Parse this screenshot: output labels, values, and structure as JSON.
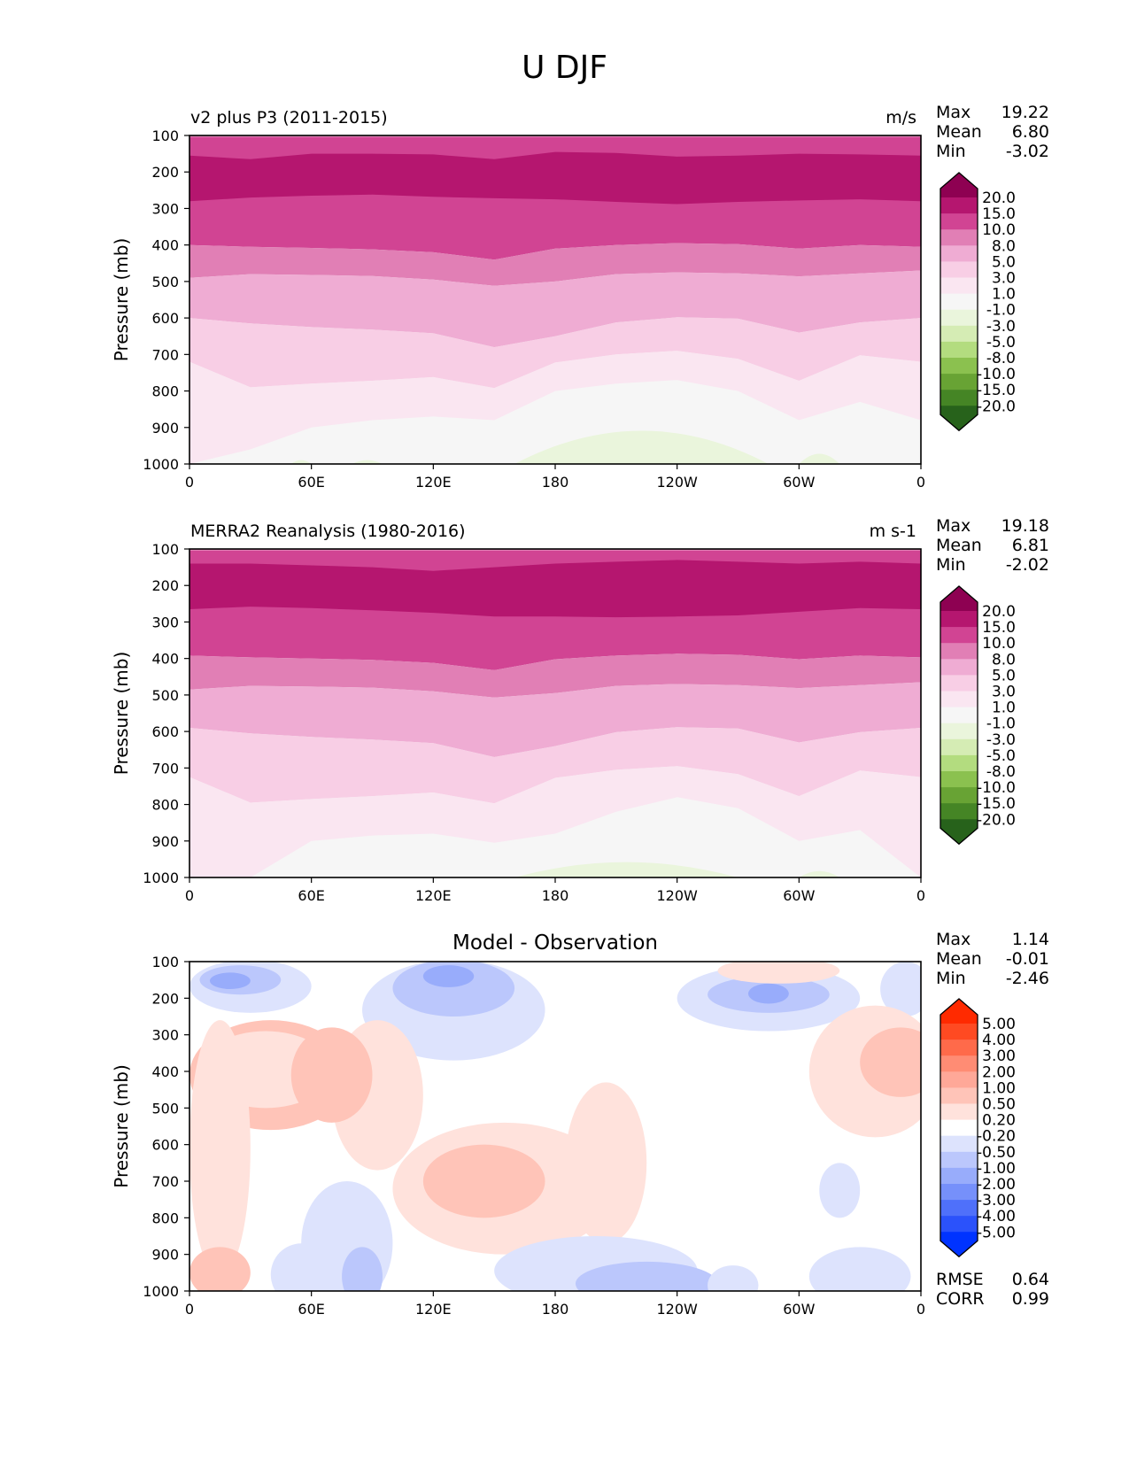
{
  "figure_title": "U DJF",
  "chart_data": [
    {
      "type": "heatmap",
      "subtype": "filled-contour",
      "title_left": "v2 plus P3 (2011-2015)",
      "title_right": "m/s",
      "xlabel": "",
      "ylabel": "Pressure (mb)",
      "x_ticks": [
        "0",
        "60E",
        "120E",
        "180",
        "120W",
        "60W",
        "0"
      ],
      "x_range": [
        0,
        360
      ],
      "y_ticks": [
        "100",
        "200",
        "300",
        "400",
        "500",
        "600",
        "700",
        "800",
        "900",
        "1000"
      ],
      "y_range": [
        100,
        1000
      ],
      "y_inverted": true,
      "stats": [
        {
          "label": "Max",
          "value": "19.22"
        },
        {
          "label": "Mean",
          "value": "6.80"
        },
        {
          "label": "Min",
          "value": "-3.02"
        }
      ],
      "colorbar": {
        "levels": [
          "20.0",
          "15.0",
          "10.0",
          "8.0",
          "5.0",
          "3.0",
          "1.0",
          "-1.0",
          "-3.0",
          "-5.0",
          "-8.0",
          "-10.0",
          "-15.0",
          "-20.0"
        ],
        "colors": [
          "#8e0152",
          "#b5166f",
          "#d14493",
          "#e17fb5",
          "#efacd3",
          "#f8cee5",
          "#fae6f1",
          "#f6f6f6",
          "#eaf5dc",
          "#d5ecb4",
          "#b3dc7f",
          "#8bc14f",
          "#68a334",
          "#458525",
          "#27621b"
        ],
        "extend": "both"
      },
      "bands_by_level_index": [
        {
          "band": 1,
          "p_top": [
            150,
            160,
            155,
            150,
            150,
            160,
            145,
            150,
            160,
            155,
            150,
            155,
            160
          ],
          "p_bot": [
            280,
            270,
            268,
            262,
            265,
            270,
            275,
            280,
            285,
            282,
            280,
            278,
            280
          ]
        },
        {
          "band": 2,
          "p_top": [
            100,
            100,
            100,
            100,
            100,
            100,
            100,
            100,
            100,
            100,
            100,
            100,
            100
          ],
          "p_bot": [
            400,
            405,
            408,
            412,
            420,
            440,
            410,
            400,
            395,
            398,
            410,
            400,
            405
          ]
        },
        {
          "band": 3,
          "p_bot": [
            490,
            480,
            480,
            482,
            490,
            510,
            500,
            480,
            475,
            478,
            485,
            480,
            470
          ]
        },
        {
          "band": 4,
          "p_bot": [
            600,
            610,
            620,
            630,
            640,
            680,
            650,
            610,
            595,
            600,
            640,
            610,
            600
          ]
        },
        {
          "band": 5,
          "p_bot": [
            720,
            790,
            780,
            770,
            760,
            790,
            720,
            700,
            690,
            710,
            770,
            700,
            720
          ]
        },
        {
          "band": 6,
          "p_bot": [
            900,
            900,
            890,
            880,
            870,
            870,
            800,
            780,
            770,
            800,
            870,
            830,
            870
          ]
        },
        {
          "band": 7,
          "p_bot": [
            1000,
            1000,
            1000,
            1000,
            1000,
            1000,
            1000,
            1000,
            1000,
            1000,
            1000,
            1000,
            1000
          ]
        }
      ]
    },
    {
      "type": "heatmap",
      "subtype": "filled-contour",
      "title_left": "MERRA2 Reanalysis (1980-2016)",
      "title_right": "m s-1",
      "xlabel": "",
      "ylabel": "Pressure (mb)",
      "x_ticks": [
        "0",
        "60E",
        "120E",
        "180",
        "120W",
        "60W",
        "0"
      ],
      "x_range": [
        0,
        360
      ],
      "y_ticks": [
        "100",
        "200",
        "300",
        "400",
        "500",
        "600",
        "700",
        "800",
        "900",
        "1000"
      ],
      "y_range": [
        100,
        1000
      ],
      "y_inverted": true,
      "stats": [
        {
          "label": "Max",
          "value": "19.18"
        },
        {
          "label": "Mean",
          "value": "6.81"
        },
        {
          "label": "Min",
          "value": "-2.02"
        }
      ],
      "colorbar": {
        "levels": [
          "20.0",
          "15.0",
          "10.0",
          "8.0",
          "5.0",
          "3.0",
          "1.0",
          "-1.0",
          "-3.0",
          "-5.0",
          "-8.0",
          "-10.0",
          "-15.0",
          "-20.0"
        ],
        "colors": [
          "#8e0152",
          "#b5166f",
          "#d14493",
          "#e17fb5",
          "#efacd3",
          "#f8cee5",
          "#fae6f1",
          "#f6f6f6",
          "#eaf5dc",
          "#d5ecb4",
          "#b3dc7f",
          "#8bc14f",
          "#68a334",
          "#458525",
          "#27621b"
        ],
        "extend": "both"
      }
    },
    {
      "type": "heatmap",
      "subtype": "filled-contour",
      "title_center": "Model - Observation",
      "xlabel": "",
      "ylabel": "Pressure (mb)",
      "x_ticks": [
        "0",
        "60E",
        "120E",
        "180",
        "120W",
        "60W",
        "0"
      ],
      "x_range": [
        0,
        360
      ],
      "y_ticks": [
        "100",
        "200",
        "300",
        "400",
        "500",
        "600",
        "700",
        "800",
        "900",
        "1000"
      ],
      "y_range": [
        100,
        1000
      ],
      "y_inverted": true,
      "stats": [
        {
          "label": "Max",
          "value": "1.14"
        },
        {
          "label": "Mean",
          "value": "-0.01"
        },
        {
          "label": "Min",
          "value": "-2.46"
        }
      ],
      "extra_stats": [
        {
          "label": "RMSE",
          "value": "0.64"
        },
        {
          "label": "CORR",
          "value": "0.99"
        }
      ],
      "colorbar": {
        "levels": [
          "5.00",
          "4.00",
          "3.00",
          "2.00",
          "1.00",
          "0.50",
          "0.20",
          "-0.20",
          "-0.50",
          "-1.00",
          "-2.00",
          "-3.00",
          "-4.00",
          "-5.00"
        ],
        "colors": [
          "#ff2a00",
          "#ff4a22",
          "#ff6a4a",
          "#ff8c74",
          "#ffa898",
          "#ffc4b8",
          "#ffe2dc",
          "#ffffff",
          "#dde3fd",
          "#bbc7fc",
          "#98acfb",
          "#7690fa",
          "#4f70fa",
          "#2b52fb",
          "#0033ff"
        ],
        "extend": "both"
      }
    }
  ]
}
